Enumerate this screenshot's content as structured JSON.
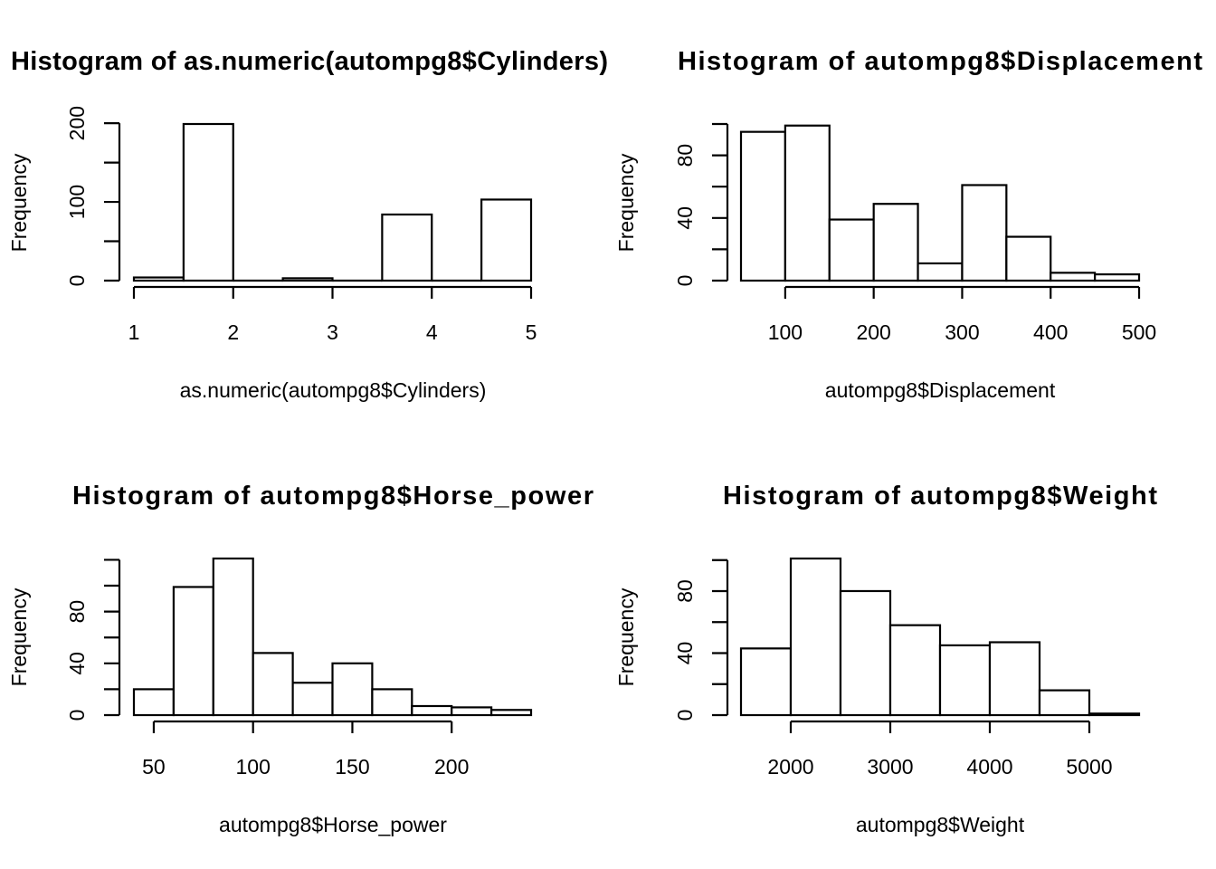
{
  "chart_data": [
    {
      "type": "bar",
      "title": "Histogram of as.numeric(autompg8$Cylinders)",
      "xlabel": "as.numeric(autompg8$Cylinders)",
      "ylabel": "Frequency",
      "bins": [
        [
          1,
          1.5
        ],
        [
          1.5,
          2
        ],
        [
          2,
          2.5
        ],
        [
          2.5,
          3
        ],
        [
          3,
          3.5
        ],
        [
          3.5,
          4
        ],
        [
          4,
          4.5
        ],
        [
          4.5,
          5
        ]
      ],
      "values": [
        4,
        199,
        0,
        3,
        0,
        84,
        0,
        103
      ],
      "xticks": [
        1,
        2,
        3,
        4,
        5
      ],
      "yticks": [
        0,
        100,
        200
      ],
      "yminor": [
        50,
        150
      ],
      "xlim": [
        1,
        5
      ],
      "ylim": [
        0,
        199
      ],
      "grid": false
    },
    {
      "type": "bar",
      "title": "Histogram of autompg8$Displacement",
      "xlabel": "autompg8$Displacement",
      "ylabel": "Frequency",
      "bins": [
        [
          50,
          100
        ],
        [
          100,
          150
        ],
        [
          150,
          200
        ],
        [
          200,
          250
        ],
        [
          250,
          300
        ],
        [
          300,
          350
        ],
        [
          350,
          400
        ],
        [
          400,
          450
        ],
        [
          450,
          500
        ]
      ],
      "values": [
        95,
        99,
        39,
        49,
        11,
        61,
        28,
        5,
        4
      ],
      "xticks": [
        100,
        200,
        300,
        400,
        500
      ],
      "yticks": [
        0,
        40,
        80
      ],
      "yminor": [
        20,
        60,
        100
      ],
      "xlim": [
        50,
        500
      ],
      "ylim": [
        0,
        100
      ],
      "grid": false
    },
    {
      "type": "bar",
      "title": "Histogram of autompg8$Horse_power",
      "xlabel": "autompg8$Horse_power",
      "ylabel": "Frequency",
      "bins": [
        [
          40,
          60
        ],
        [
          60,
          80
        ],
        [
          80,
          100
        ],
        [
          100,
          120
        ],
        [
          120,
          140
        ],
        [
          140,
          160
        ],
        [
          160,
          180
        ],
        [
          180,
          200
        ],
        [
          200,
          220
        ],
        [
          220,
          240
        ]
      ],
      "values": [
        20,
        99,
        121,
        48,
        25,
        40,
        20,
        7,
        6,
        4
      ],
      "xticks": [
        50,
        100,
        150,
        200
      ],
      "yticks": [
        0,
        40,
        80
      ],
      "yminor": [
        20,
        60,
        100,
        120
      ],
      "xlim": [
        40,
        240
      ],
      "ylim": [
        0,
        121
      ],
      "grid": false
    },
    {
      "type": "bar",
      "title": "Histogram of autompg8$Weight",
      "xlabel": "autompg8$Weight",
      "ylabel": "Frequency",
      "bins": [
        [
          1500,
          2000
        ],
        [
          2000,
          2500
        ],
        [
          2500,
          3000
        ],
        [
          3000,
          3500
        ],
        [
          3500,
          4000
        ],
        [
          4000,
          4500
        ],
        [
          4500,
          5000
        ],
        [
          5000,
          5500
        ]
      ],
      "values": [
        43,
        101,
        80,
        58,
        45,
        47,
        16,
        1
      ],
      "xticks": [
        2000,
        3000,
        4000,
        5000
      ],
      "yticks": [
        0,
        40,
        80
      ],
      "yminor": [
        20,
        60,
        100
      ],
      "xlim": [
        1500,
        5500
      ],
      "ylim": [
        0,
        101
      ],
      "grid": false
    }
  ]
}
